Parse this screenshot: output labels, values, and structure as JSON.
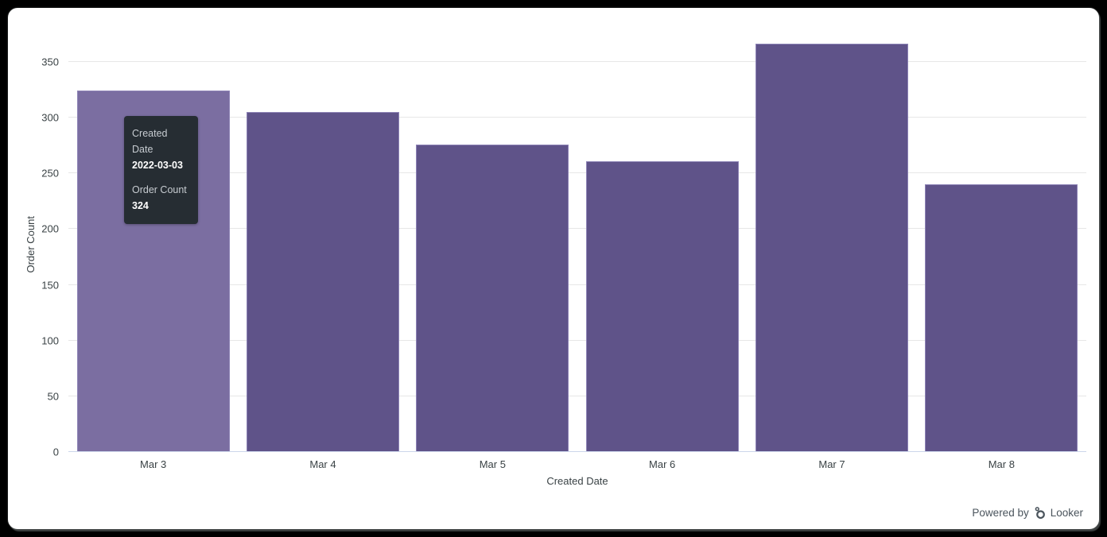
{
  "chart_data": {
    "type": "bar",
    "title": "",
    "categories": [
      "Mar 3",
      "Mar 4",
      "Mar 5",
      "Mar 6",
      "Mar 7",
      "Mar 8"
    ],
    "values": [
      324,
      305,
      276,
      261,
      366,
      240
    ],
    "xlabel": "Created Date",
    "ylabel": "Order Count",
    "ylim": [
      0,
      372
    ],
    "yticks": [
      0,
      50,
      100,
      150,
      200,
      250,
      300,
      350
    ],
    "grid": true,
    "legend": false,
    "bar_color": "#5f5389",
    "bar_hover_color": "#7b6ea1",
    "bar_border_color": "#8d83b6",
    "hovered_index": 0
  },
  "tooltip": {
    "dimension_label": "Created Date",
    "dimension_value": "2022-03-03",
    "measure_label": "Order Count",
    "measure_value": "324"
  },
  "footer": {
    "powered_by": "Powered by",
    "brand": "Looker"
  },
  "colors": {
    "gridline": "#e7e7e7",
    "axis_line": "#ccd6eb",
    "axis_text": "#3a4245",
    "tooltip_bg": "#262d33",
    "footer_text": "#4a545c"
  }
}
